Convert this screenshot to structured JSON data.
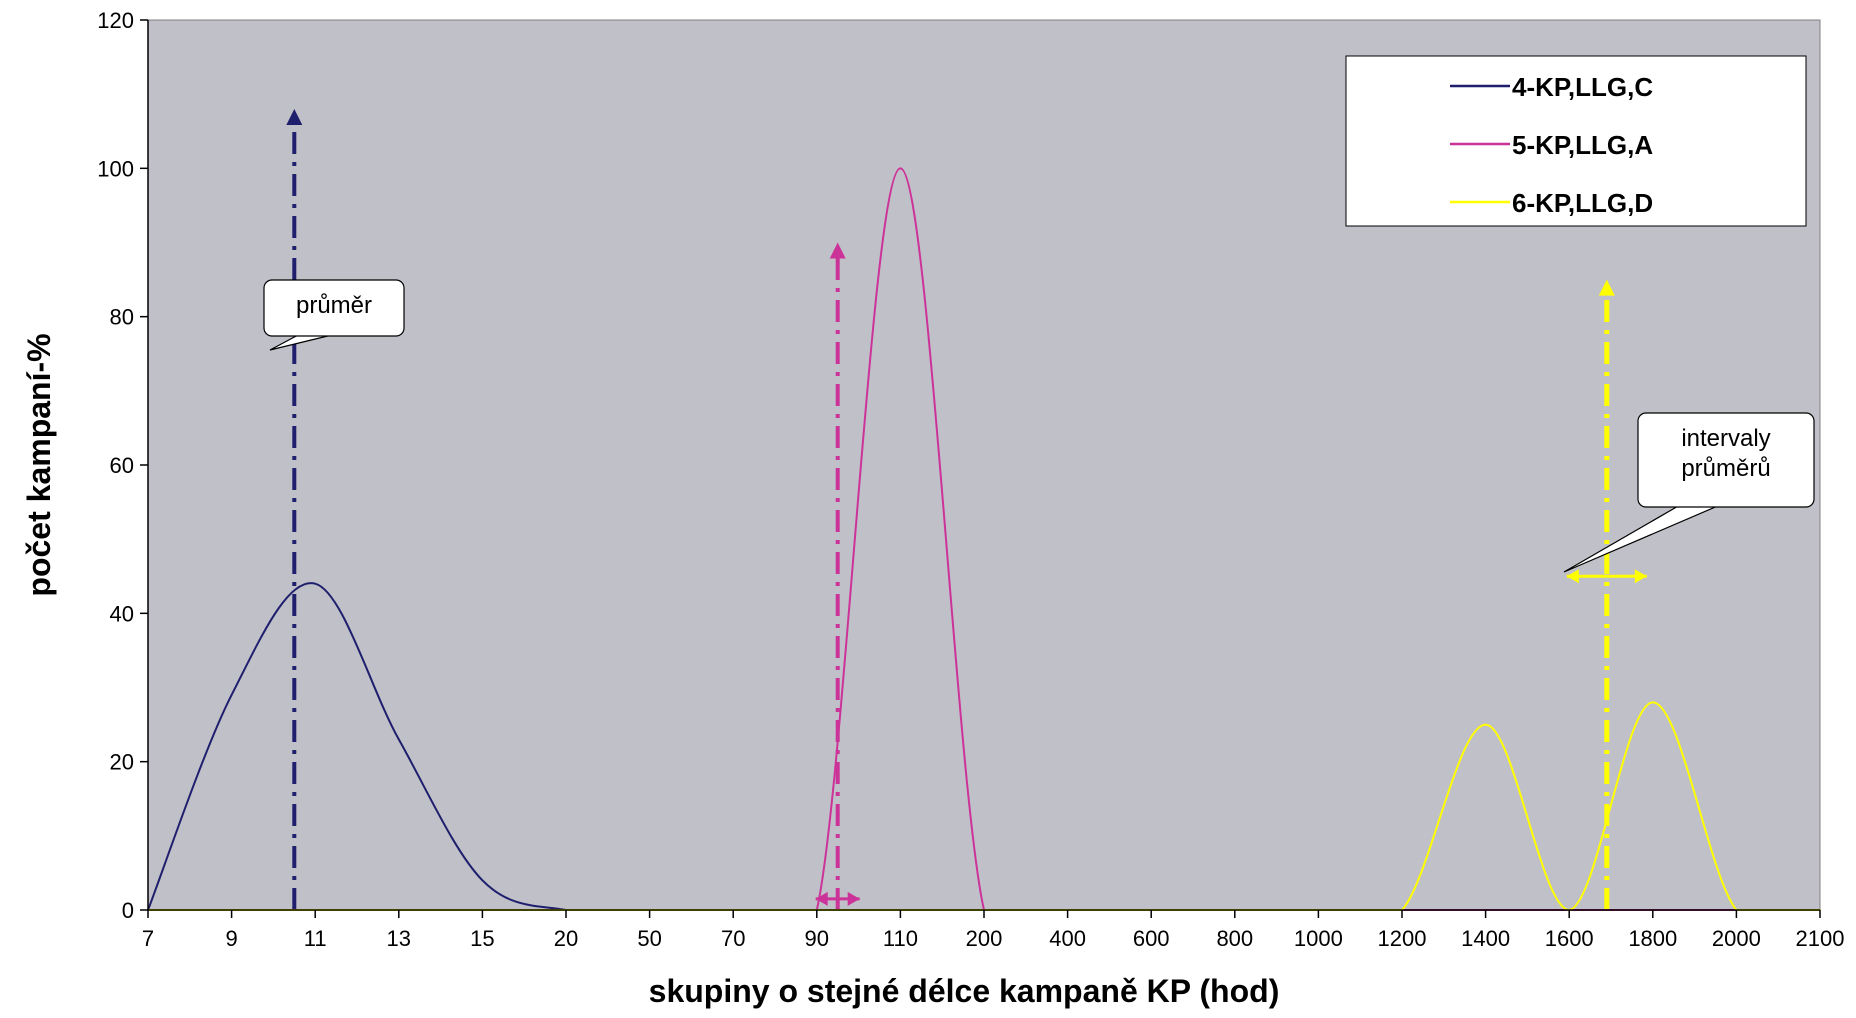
{
  "chart_data": {
    "type": "line",
    "title": "",
    "xlabel": "skupiny o stejné délce kampaně KP (hod)",
    "ylabel": "počet kampaní-%",
    "ylim": [
      0,
      120
    ],
    "yticks": [
      "0",
      "20",
      "40",
      "60",
      "80",
      "100",
      "120"
    ],
    "categories": [
      "7",
      "9",
      "11",
      "13",
      "15",
      "20",
      "50",
      "70",
      "90",
      "110",
      "200",
      "400",
      "600",
      "800",
      "1000",
      "1200",
      "1400",
      "1600",
      "1800",
      "2000",
      "2100"
    ],
    "grid": false,
    "legend_placement": "top-right",
    "plot_background": "#c0c0c8",
    "series": [
      {
        "name": "4-KP,LLG,C",
        "color": "#1f1f6e",
        "values": [
          0,
          29,
          44,
          23,
          4,
          0,
          0,
          0,
          0,
          0,
          0,
          0,
          0,
          0,
          0,
          0,
          0,
          0,
          0,
          0,
          0
        ]
      },
      {
        "name": "5-KP,LLG,A",
        "color": "#cc3399",
        "values": [
          0,
          0,
          0,
          0,
          0,
          0,
          0,
          0,
          0,
          100,
          0,
          0,
          0,
          0,
          0,
          0,
          0,
          0,
          0,
          0,
          0
        ]
      },
      {
        "name": "6-KP,LLG,D",
        "color": "#ffff00",
        "values": [
          0,
          0,
          0,
          0,
          0,
          0,
          0,
          0,
          0,
          0,
          0,
          0,
          0,
          0,
          0,
          0,
          25,
          0,
          28,
          0,
          0
        ]
      }
    ],
    "annotations": [
      {
        "label": "průměr"
      },
      {
        "label": "intervaly\nprůměrů"
      }
    ]
  }
}
